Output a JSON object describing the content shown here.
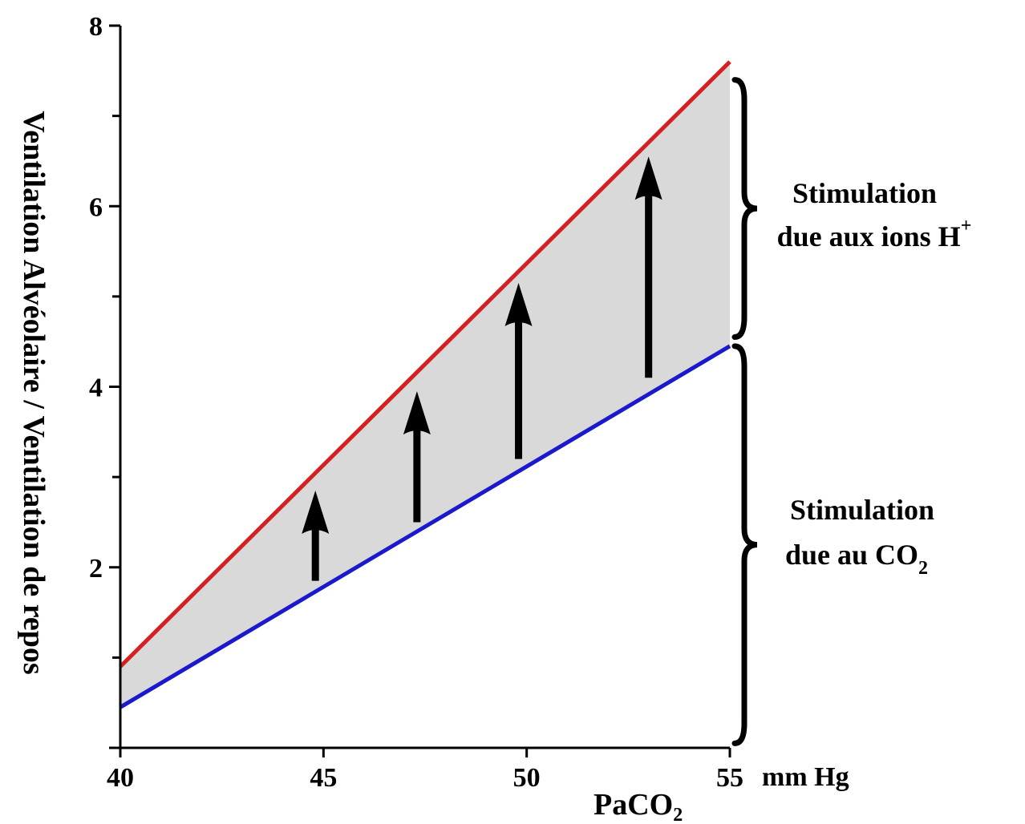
{
  "chart_data": {
    "type": "line",
    "ylabel": "Ventilation Alvéolaire / Ventilation de repos",
    "xlabel_main": "PaCO",
    "xlabel_sub": "2",
    "x_unit": "mm Hg",
    "xlim": [
      40,
      55
    ],
    "ylim": [
      0,
      8
    ],
    "x_ticks": [
      40,
      45,
      50,
      55
    ],
    "x_tick_labels": [
      "40",
      "45",
      "50",
      "55"
    ],
    "y_ticks": [
      2,
      4,
      6,
      8
    ],
    "y_tick_labels": [
      "2",
      "4",
      "6",
      "8"
    ],
    "grid": false,
    "series": [
      {
        "x": [
          40,
          55
        ],
        "values": [
          0.9,
          7.6
        ],
        "color": "#d42020"
      },
      {
        "x": [
          40,
          55
        ],
        "values": [
          0.45,
          4.45
        ],
        "color": "#1a1acc"
      }
    ],
    "fill_between": {
      "color": "#d9d9d9"
    },
    "arrows": [
      {
        "x": 44.8,
        "y_from": 1.85,
        "y_to": 2.85
      },
      {
        "x": 47.3,
        "y_from": 2.5,
        "y_to": 3.95
      },
      {
        "x": 49.8,
        "y_from": 3.2,
        "y_to": 5.15
      },
      {
        "x": 53.0,
        "y_from": 4.1,
        "y_to": 6.55
      }
    ],
    "annotations": [
      {
        "line1": "Stimulation",
        "line2": "due aux ions H",
        "sup": "+",
        "y_from": 4.55,
        "y_to": 7.4
      },
      {
        "line1": "Stimulation",
        "line2": "due au CO",
        "sub": "2",
        "y_from": 0.05,
        "y_to": 4.45
      }
    ]
  }
}
